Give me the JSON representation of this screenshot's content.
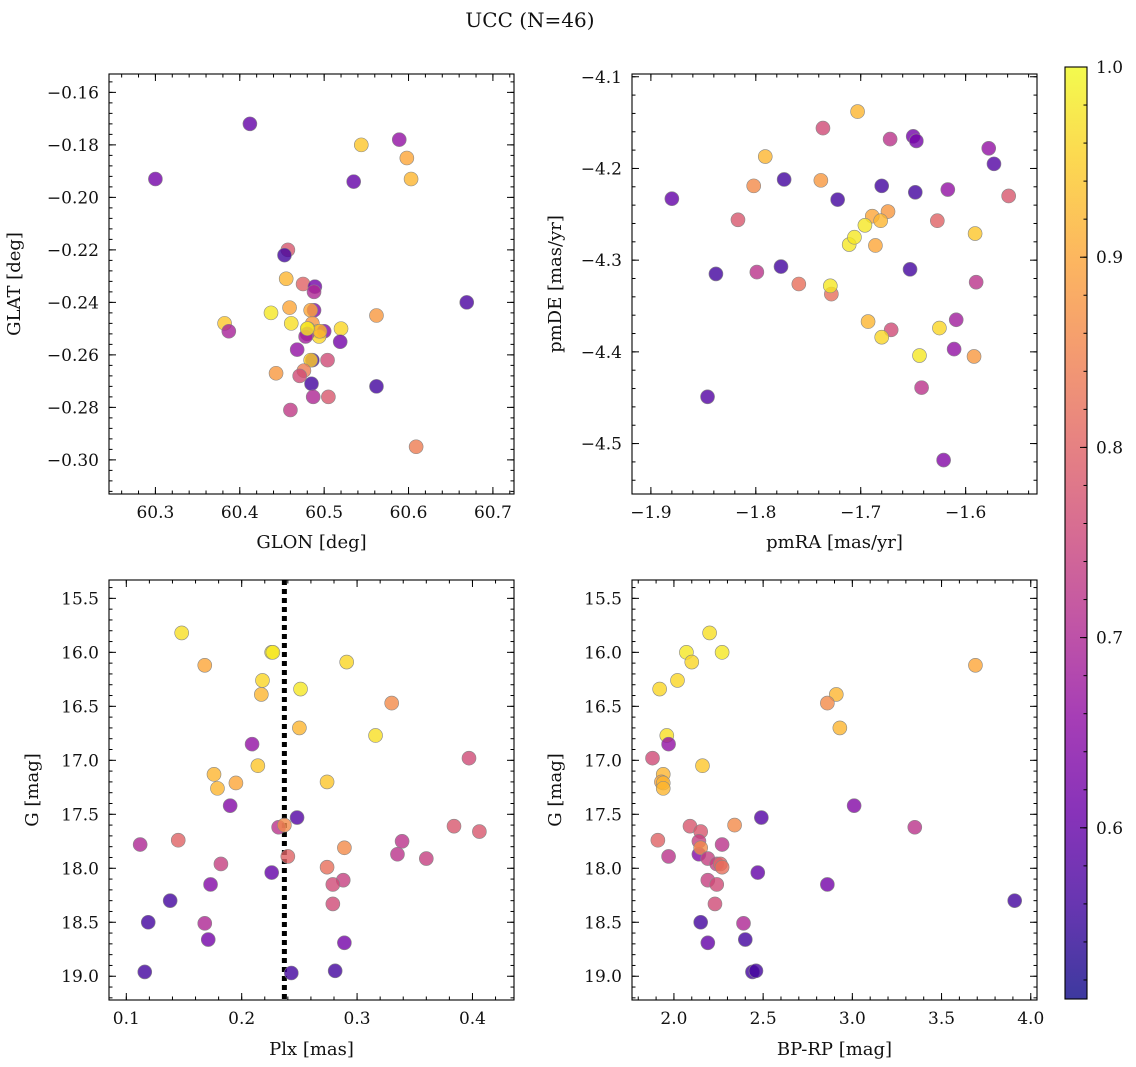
{
  "figure": {
    "title": "UCC (N=46)"
  },
  "colorbar": {
    "range": [
      0.51,
      1.0
    ],
    "ticks": [
      0.6,
      0.7,
      0.8,
      0.9,
      1.0
    ],
    "tick_labels": [
      "0.6",
      "0.7",
      "0.8",
      "0.9",
      "1.0"
    ],
    "colormap": "plasma",
    "alpha": 0.8
  },
  "chart_data": [
    {
      "type": "scatter",
      "title": "",
      "xlabel": "GLON [deg]",
      "ylabel": "GLAT [deg]",
      "xlim": [
        60.245,
        60.725
      ],
      "ylim": [
        -0.313,
        -0.153
      ],
      "y_inverted": false,
      "xticks": [
        60.3,
        60.4,
        60.5,
        60.6,
        60.7
      ],
      "xtick_labels": [
        "60.3",
        "60.4",
        "60.5",
        "60.6",
        "60.7"
      ],
      "yticks": [
        -0.16,
        -0.18,
        -0.2,
        -0.22,
        -0.24,
        -0.26,
        -0.28,
        -0.3
      ],
      "ytick_labels": [
        "−0.16",
        "−0.18",
        "−0.20",
        "−0.22",
        "−0.24",
        "−0.26",
        "−0.28",
        "−0.30"
      ],
      "x": [
        60.412,
        60.3,
        60.589,
        60.535,
        60.544,
        60.598,
        60.603,
        60.457,
        60.453,
        60.475,
        60.489,
        60.488,
        60.669,
        60.455,
        60.382,
        60.387,
        60.437,
        60.459,
        60.488,
        60.484,
        60.486,
        60.52,
        60.562,
        60.493,
        60.5,
        60.481,
        60.494,
        60.519,
        60.468,
        60.461,
        60.486,
        60.484,
        60.443,
        60.48,
        60.476,
        60.471,
        60.504,
        60.485,
        60.562,
        60.46,
        60.487,
        60.505,
        60.609,
        60.495,
        60.478,
        60.48
      ],
      "y": [
        -0.172,
        -0.193,
        -0.178,
        -0.194,
        -0.18,
        -0.185,
        -0.193,
        -0.22,
        -0.222,
        -0.233,
        -0.234,
        -0.236,
        -0.24,
        -0.231,
        -0.248,
        -0.251,
        -0.244,
        -0.242,
        -0.243,
        -0.243,
        -0.248,
        -0.25,
        -0.245,
        -0.251,
        -0.251,
        -0.25,
        -0.253,
        -0.255,
        -0.258,
        -0.248,
        -0.262,
        -0.262,
        -0.267,
        -0.252,
        -0.266,
        -0.268,
        -0.262,
        -0.271,
        -0.272,
        -0.281,
        -0.276,
        -0.276,
        -0.295,
        -0.251,
        -0.253,
        -0.25
      ],
      "color": [
        0.6,
        0.62,
        0.66,
        0.6,
        0.94,
        0.9,
        0.92,
        0.78,
        0.56,
        0.8,
        0.62,
        0.7,
        0.57,
        0.92,
        0.94,
        0.69,
        0.98,
        0.9,
        0.64,
        0.9,
        0.88,
        0.96,
        0.88,
        0.98,
        0.64,
        0.96,
        0.96,
        0.62,
        0.66,
        0.97,
        0.56,
        0.95,
        0.88,
        0.7,
        0.84,
        0.76,
        0.76,
        0.56,
        0.56,
        0.73,
        0.7,
        0.78,
        0.84,
        0.92,
        0.68,
        0.98
      ]
    },
    {
      "type": "scatter",
      "title": "",
      "xlabel": "pmRA [mas/yr]",
      "ylabel": "pmDE [mas/yr]",
      "xlim": [
        -1.918,
        -1.532
      ],
      "ylim": [
        -4.555,
        -4.097
      ],
      "y_inverted": false,
      "xticks": [
        -1.9,
        -1.8,
        -1.7,
        -1.6
      ],
      "xtick_labels": [
        "−1.9",
        "−1.8",
        "−1.7",
        "−1.6"
      ],
      "yticks": [
        -4.1,
        -4.2,
        -4.3,
        -4.4,
        -4.5
      ],
      "ytick_labels": [
        "−4.1",
        "−4.2",
        "−4.3",
        "−4.4",
        "−4.5"
      ],
      "x": [
        -1.703,
        -1.736,
        -1.65,
        -1.647,
        -1.672,
        -1.578,
        -1.791,
        -1.573,
        -1.559,
        -1.88,
        -1.773,
        -1.802,
        -1.738,
        -1.68,
        -1.648,
        -1.617,
        -1.722,
        -1.817,
        -1.627,
        -1.674,
        -1.689,
        -1.681,
        -1.696,
        -1.686,
        -1.711,
        -1.706,
        -1.591,
        -1.838,
        -1.776,
        -1.799,
        -1.759,
        -1.653,
        -1.728,
        -1.59,
        -1.693,
        -1.609,
        -1.625,
        -1.671,
        -1.68,
        -1.644,
        -1.611,
        -1.592,
        -1.642,
        -1.846,
        -1.621,
        -1.729
      ],
      "y": [
        -4.138,
        -4.156,
        -4.165,
        -4.17,
        -4.168,
        -4.178,
        -4.187,
        -4.195,
        -4.23,
        -4.233,
        -4.212,
        -4.219,
        -4.213,
        -4.219,
        -4.226,
        -4.223,
        -4.234,
        -4.256,
        -4.257,
        -4.247,
        -4.252,
        -4.257,
        -4.262,
        -4.284,
        -4.283,
        -4.275,
        -4.271,
        -4.315,
        -4.307,
        -4.313,
        -4.326,
        -4.31,
        -4.337,
        -4.324,
        -4.367,
        -4.365,
        -4.374,
        -4.376,
        -4.384,
        -4.404,
        -4.397,
        -4.405,
        -4.439,
        -4.449,
        -4.518,
        -4.328
      ],
      "color": [
        0.92,
        0.76,
        0.62,
        0.62,
        0.72,
        0.66,
        0.92,
        0.58,
        0.78,
        0.6,
        0.56,
        0.86,
        0.88,
        0.56,
        0.56,
        0.66,
        0.56,
        0.78,
        0.8,
        0.88,
        0.9,
        0.92,
        0.98,
        0.9,
        0.98,
        0.98,
        0.94,
        0.56,
        0.56,
        0.72,
        0.82,
        0.56,
        0.82,
        0.72,
        0.92,
        0.68,
        0.96,
        0.76,
        0.96,
        0.98,
        0.66,
        0.88,
        0.72,
        0.58,
        0.64,
        0.98
      ]
    },
    {
      "type": "scatter",
      "title": "",
      "xlabel": "Plx [mas]",
      "ylabel": "G [mag]",
      "xlim": [
        0.085,
        0.436
      ],
      "ylim": [
        19.22,
        15.33
      ],
      "y_inverted": true,
      "xticks": [
        0.1,
        0.2,
        0.3,
        0.4
      ],
      "xtick_labels": [
        "0.1",
        "0.2",
        "0.3",
        "0.4"
      ],
      "yticks": [
        15.5,
        16.0,
        16.5,
        17.0,
        17.5,
        18.0,
        18.5,
        19.0
      ],
      "ytick_labels": [
        "15.5",
        "16.0",
        "16.5",
        "17.0",
        "17.5",
        "18.0",
        "18.5",
        "19.0"
      ],
      "vline": {
        "x": 0.237,
        "style": "dotted",
        "color": "#000000"
      },
      "x": [
        0.148,
        0.226,
        0.227,
        0.168,
        0.291,
        0.218,
        0.217,
        0.251,
        0.33,
        0.25,
        0.316,
        0.209,
        0.397,
        0.214,
        0.176,
        0.195,
        0.179,
        0.274,
        0.19,
        0.248,
        0.232,
        0.112,
        0.145,
        0.384,
        0.406,
        0.24,
        0.237,
        0.335,
        0.339,
        0.289,
        0.36,
        0.182,
        0.274,
        0.226,
        0.138,
        0.288,
        0.173,
        0.279,
        0.119,
        0.168,
        0.279,
        0.171,
        0.289,
        0.116,
        0.243,
        0.281
      ],
      "y": [
        15.82,
        16.0,
        16.0,
        16.12,
        16.09,
        16.26,
        16.39,
        16.34,
        16.47,
        16.7,
        16.77,
        16.85,
        16.98,
        17.05,
        17.13,
        17.21,
        17.26,
        17.2,
        17.42,
        17.53,
        17.62,
        17.78,
        17.74,
        17.61,
        17.66,
        17.89,
        17.6,
        17.87,
        17.75,
        17.81,
        17.91,
        17.96,
        17.99,
        18.04,
        18.3,
        18.11,
        18.15,
        18.15,
        18.5,
        18.51,
        18.33,
        18.66,
        18.69,
        18.96,
        18.97,
        18.95
      ],
      "color": [
        0.97,
        0.98,
        0.98,
        0.9,
        0.96,
        0.96,
        0.92,
        0.98,
        0.86,
        0.92,
        0.97,
        0.66,
        0.76,
        0.94,
        0.92,
        0.9,
        0.92,
        0.94,
        0.64,
        0.58,
        0.72,
        0.7,
        0.8,
        0.78,
        0.78,
        0.8,
        0.86,
        0.72,
        0.72,
        0.86,
        0.74,
        0.74,
        0.82,
        0.6,
        0.56,
        0.74,
        0.64,
        0.76,
        0.56,
        0.7,
        0.76,
        0.62,
        0.62,
        0.56,
        0.56,
        0.56
      ]
    },
    {
      "type": "scatter",
      "title": "",
      "xlabel": "BP-RP [mag]",
      "ylabel": "G [mag]",
      "xlim": [
        1.765,
        4.035
      ],
      "ylim": [
        19.22,
        15.33
      ],
      "y_inverted": true,
      "xticks": [
        2.0,
        2.5,
        3.0,
        3.5,
        4.0
      ],
      "xtick_labels": [
        "2.0",
        "2.5",
        "3.0",
        "3.5",
        "4.0"
      ],
      "yticks": [
        15.5,
        16.0,
        16.5,
        17.0,
        17.5,
        18.0,
        18.5,
        19.0
      ],
      "ytick_labels": [
        "15.5",
        "16.0",
        "16.5",
        "17.0",
        "17.5",
        "18.0",
        "18.5",
        "19.0"
      ],
      "x": [
        2.2,
        2.07,
        2.27,
        2.1,
        3.69,
        2.02,
        1.92,
        2.91,
        2.86,
        2.93,
        1.96,
        1.97,
        1.88,
        2.16,
        1.94,
        1.93,
        1.94,
        1.94,
        3.01,
        2.49,
        2.09,
        2.34,
        1.91,
        2.15,
        3.35,
        1.97,
        2.14,
        2.27,
        2.14,
        2.15,
        2.19,
        2.24,
        2.26,
        2.27,
        2.47,
        2.19,
        2.24,
        2.86,
        2.23,
        2.15,
        2.39,
        2.4,
        2.19,
        2.44,
        2.46,
        3.91
      ],
      "y": [
        15.82,
        16.0,
        16.0,
        16.09,
        16.12,
        16.26,
        16.34,
        16.39,
        16.47,
        16.7,
        16.77,
        16.85,
        16.98,
        17.05,
        17.13,
        17.2,
        17.21,
        17.26,
        17.42,
        17.53,
        17.61,
        17.6,
        17.74,
        17.66,
        17.62,
        17.89,
        17.87,
        17.78,
        17.75,
        17.81,
        17.91,
        17.96,
        17.96,
        17.99,
        18.04,
        18.11,
        18.15,
        18.15,
        18.33,
        18.5,
        18.51,
        18.66,
        18.69,
        18.96,
        18.95,
        18.3
      ],
      "color": [
        0.97,
        0.98,
        0.98,
        0.96,
        0.9,
        0.96,
        0.96,
        0.92,
        0.86,
        0.92,
        0.97,
        0.66,
        0.76,
        0.94,
        0.92,
        0.9,
        0.92,
        0.92,
        0.64,
        0.58,
        0.78,
        0.86,
        0.8,
        0.78,
        0.72,
        0.72,
        0.64,
        0.72,
        0.74,
        0.86,
        0.74,
        0.74,
        0.8,
        0.82,
        0.6,
        0.74,
        0.76,
        0.62,
        0.76,
        0.56,
        0.7,
        0.56,
        0.6,
        0.56,
        0.56,
        0.56
      ]
    }
  ]
}
